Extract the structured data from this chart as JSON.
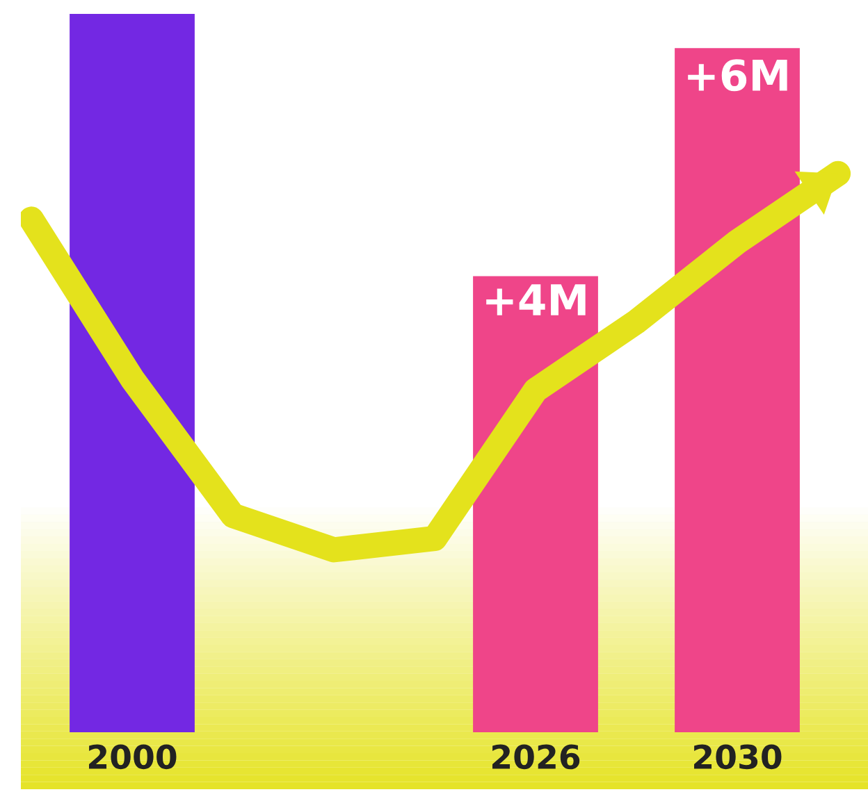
{
  "chart_data": {
    "type": "bar",
    "categories": [
      null,
      "2000",
      null,
      null,
      null,
      "2026",
      null,
      "2030",
      null
    ],
    "series": [
      {
        "type": "bar",
        "values": [
          null,
          6.3,
          null,
          null,
          null,
          4,
          null,
          6,
          null
        ],
        "colors": [
          "#7328e3",
          "#7328e3",
          "#ef4589",
          "#ef4589",
          "#ef4589",
          "#ef4589",
          "#ef4589",
          "#ef4589",
          "#ef4589"
        ],
        "value_labels": [
          null,
          null,
          null,
          null,
          null,
          "+4M",
          null,
          "+6M",
          null
        ]
      },
      {
        "type": "line",
        "values": [
          4.5,
          3.1,
          1.9,
          1.6,
          1.7,
          3.0,
          3.6,
          4.3,
          4.9
        ],
        "color": "#e4e21c",
        "line_style": "solid"
      }
    ],
    "grid": false,
    "legend": false
  }
}
